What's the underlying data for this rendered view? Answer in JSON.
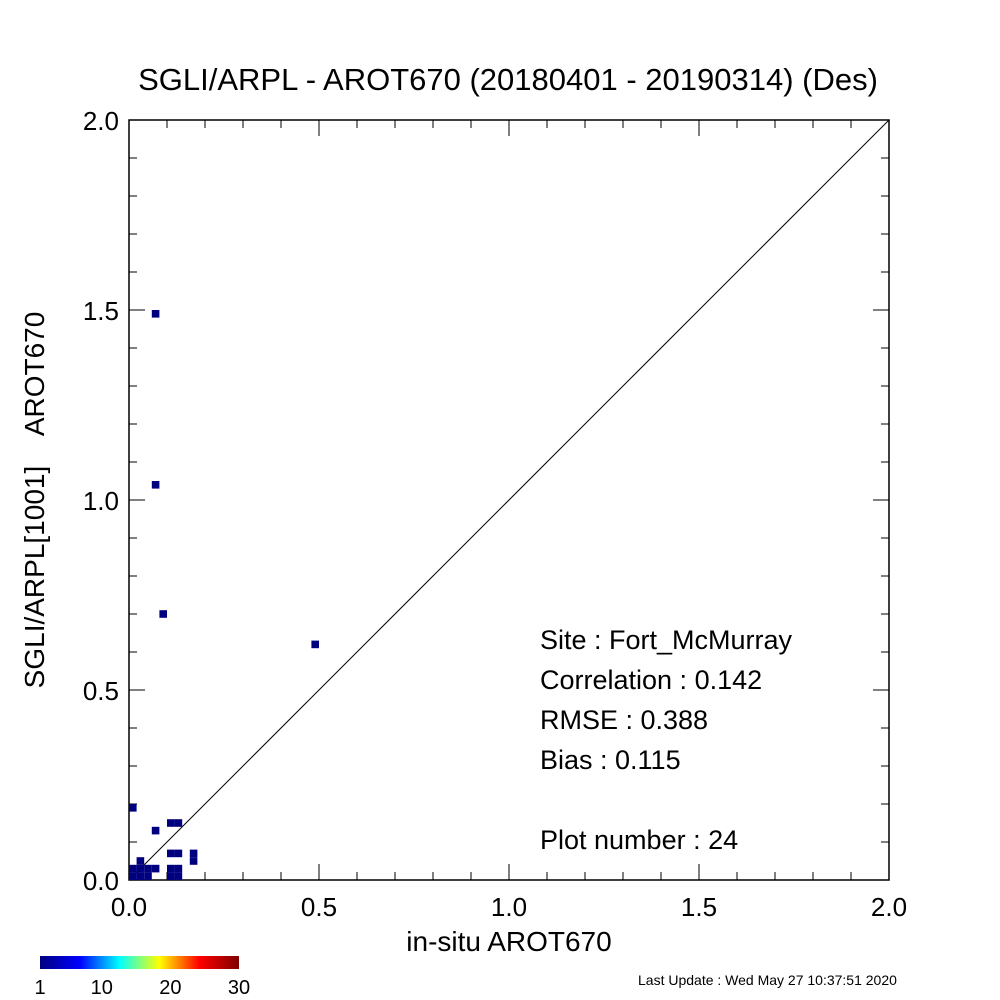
{
  "chart_data": {
    "type": "scatter",
    "title": "SGLI/ARPL - AROT670 (20180401 - 20190314) (Des)",
    "xlabel": "in-situ AROT670",
    "ylabel": "SGLI/ARPL[1001]    AROT670",
    "xlim": [
      0.0,
      2.0
    ],
    "ylim": [
      0.0,
      2.0
    ],
    "x_ticks": [
      "0.0",
      "0.5",
      "1.0",
      "1.5",
      "2.0"
    ],
    "y_ticks": [
      "0.0",
      "0.5",
      "1.0",
      "1.5",
      "2.0"
    ],
    "reference_line": "1:1",
    "grid": false,
    "points": [
      {
        "x": 0.07,
        "y": 1.49,
        "count": 1
      },
      {
        "x": 0.07,
        "y": 1.04,
        "count": 1
      },
      {
        "x": 0.09,
        "y": 0.7,
        "count": 1
      },
      {
        "x": 0.49,
        "y": 0.62,
        "count": 1
      },
      {
        "x": 0.01,
        "y": 0.19,
        "count": 1
      },
      {
        "x": 0.07,
        "y": 0.13,
        "count": 1
      },
      {
        "x": 0.11,
        "y": 0.15,
        "count": 1
      },
      {
        "x": 0.13,
        "y": 0.15,
        "count": 1
      },
      {
        "x": 0.11,
        "y": 0.07,
        "count": 1
      },
      {
        "x": 0.13,
        "y": 0.07,
        "count": 1
      },
      {
        "x": 0.17,
        "y": 0.07,
        "count": 1
      },
      {
        "x": 0.17,
        "y": 0.05,
        "count": 1
      },
      {
        "x": 0.03,
        "y": 0.05,
        "count": 1
      },
      {
        "x": 0.03,
        "y": 0.03,
        "count": 1
      },
      {
        "x": 0.05,
        "y": 0.03,
        "count": 1
      },
      {
        "x": 0.07,
        "y": 0.03,
        "count": 1
      },
      {
        "x": 0.11,
        "y": 0.03,
        "count": 1
      },
      {
        "x": 0.13,
        "y": 0.03,
        "count": 1
      },
      {
        "x": 0.03,
        "y": 0.01,
        "count": 1
      },
      {
        "x": 0.11,
        "y": 0.01,
        "count": 1
      },
      {
        "x": 0.13,
        "y": 0.01,
        "count": 1
      },
      {
        "x": 0.01,
        "y": 0.01,
        "count": 1
      },
      {
        "x": 0.05,
        "y": 0.01,
        "count": 1
      },
      {
        "x": 0.01,
        "y": 0.03,
        "count": 1
      }
    ],
    "colorbar": {
      "ticks": [
        "1",
        "10",
        "20",
        "30"
      ],
      "min": 1,
      "max": 30,
      "colors": [
        "#00007f",
        "#0000ff",
        "#00ffff",
        "#ffff00",
        "#ff0000",
        "#7f0000"
      ]
    },
    "stats": {
      "site": "Site : Fort_McMurray",
      "correlation": "Correlation :    0.142",
      "rmse": "RMSE :    0.388",
      "bias": "Bias :    0.115",
      "plot_number": "Plot number :         24"
    },
    "last_update": "Last Update : Wed May 27 10:37:51 2020"
  }
}
